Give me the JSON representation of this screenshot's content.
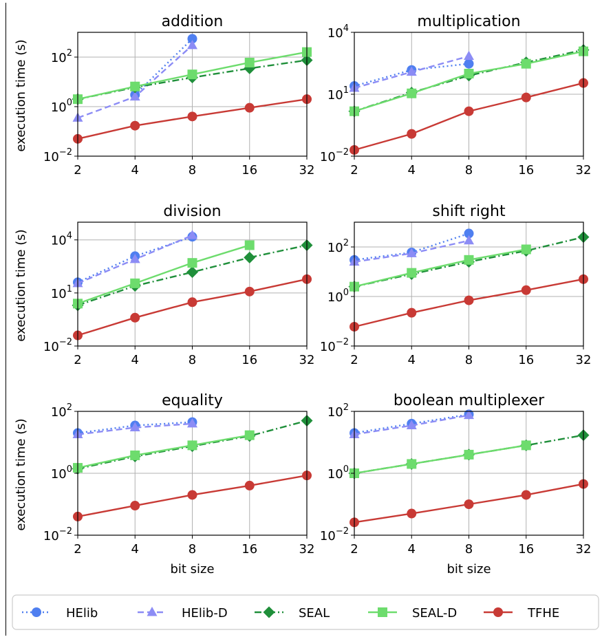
{
  "chart_data": {
    "type": "line",
    "layout": "3x2 grid of small multiples, log-scaled y axes, shared legend at bottom",
    "x": [
      2,
      4,
      8,
      16,
      32
    ],
    "x_tick_labels": [
      "2",
      "4",
      "8",
      "16",
      "32"
    ],
    "xlabel": "bit size",
    "ylabel": "execution time (s)",
    "yscale": "log",
    "grid": true,
    "legend_position": "bottom",
    "series_styles": [
      {
        "name": "HElib",
        "color": "#4f7ff0",
        "line": "dotted",
        "marker": "circle"
      },
      {
        "name": "HElib-D",
        "color": "#8c8cf5",
        "line": "dashed",
        "marker": "triangle"
      },
      {
        "name": "SEAL",
        "color": "#1f8f3a",
        "line": "dashdot",
        "marker": "diamond"
      },
      {
        "name": "SEAL-D",
        "color": "#6ddc6d",
        "line": "solid",
        "marker": "square"
      },
      {
        "name": "TFHE",
        "color": "#c83a35",
        "line": "solid",
        "marker": "circle"
      }
    ],
    "panels": [
      {
        "title": "addition",
        "ylim_exp": [
          -2,
          3
        ],
        "yticks_exp": [
          -2,
          0,
          2
        ],
        "series": [
          {
            "name": "HElib",
            "values": [
              null,
              3,
              550,
              null,
              null
            ]
          },
          {
            "name": "HElib-D",
            "values": [
              0.35,
              2.5,
              300,
              null,
              null
            ]
          },
          {
            "name": "SEAL",
            "values": [
              2,
              6,
              15,
              35,
              75
            ]
          },
          {
            "name": "SEAL-D",
            "values": [
              2,
              6.5,
              20,
              60,
              160
            ]
          },
          {
            "name": "TFHE",
            "values": [
              0.05,
              0.17,
              0.4,
              0.9,
              2
            ]
          }
        ]
      },
      {
        "title": "multiplication",
        "ylim_exp": [
          -2,
          4
        ],
        "yticks_exp": [
          -2,
          1,
          4
        ],
        "series": [
          {
            "name": "HElib",
            "values": [
              25,
              150,
              300,
              null,
              null
            ]
          },
          {
            "name": "HElib-D",
            "values": [
              20,
              120,
              700,
              null,
              null
            ]
          },
          {
            "name": "SEAL",
            "values": [
              1.5,
              12,
              80,
              350,
              1400
            ]
          },
          {
            "name": "SEAL-D",
            "values": [
              1.5,
              11,
              100,
              300,
              1200
            ]
          },
          {
            "name": "TFHE",
            "values": [
              0.02,
              0.12,
              1.5,
              7,
              35
            ]
          }
        ]
      },
      {
        "title": "division",
        "ylim_exp": [
          -2,
          5
        ],
        "yticks_exp": [
          -2,
          1,
          4
        ],
        "series": [
          {
            "name": "HElib",
            "values": [
              40,
              1200,
              15000,
              null,
              null
            ]
          },
          {
            "name": "HElib-D",
            "values": [
              35,
              800,
              18000,
              null,
              null
            ]
          },
          {
            "name": "SEAL",
            "values": [
              2,
              25,
              150,
              1000,
              5000
            ]
          },
          {
            "name": "SEAL-D",
            "values": [
              2.5,
              35,
              500,
              5000,
              null
            ]
          },
          {
            "name": "TFHE",
            "values": [
              0.04,
              0.4,
              3,
              12,
              60
            ]
          }
        ]
      },
      {
        "title": "shift right",
        "ylim_exp": [
          -2,
          3
        ],
        "yticks_exp": [
          -2,
          0,
          2
        ],
        "series": [
          {
            "name": "HElib",
            "values": [
              30,
              60,
              350,
              null,
              null
            ]
          },
          {
            "name": "HElib-D",
            "values": [
              25,
              55,
              180,
              null,
              null
            ]
          },
          {
            "name": "SEAL",
            "values": [
              2.5,
              8,
              25,
              70,
              250
            ]
          },
          {
            "name": "SEAL-D",
            "values": [
              2.5,
              9,
              30,
              80,
              null
            ]
          },
          {
            "name": "TFHE",
            "values": [
              0.06,
              0.22,
              0.7,
              1.8,
              5
            ]
          }
        ]
      },
      {
        "title": "equality",
        "ylim_exp": [
          -2,
          2
        ],
        "yticks_exp": [
          -2,
          0,
          2
        ],
        "series": [
          {
            "name": "HElib",
            "values": [
              20,
              35,
              45,
              null,
              null
            ]
          },
          {
            "name": "HElib-D",
            "values": [
              18,
              30,
              40,
              null,
              null
            ]
          },
          {
            "name": "SEAL",
            "values": [
              1.4,
              3.5,
              7.5,
              16,
              50
            ]
          },
          {
            "name": "SEAL-D",
            "values": [
              1.5,
              3.8,
              8,
              17,
              null
            ]
          },
          {
            "name": "TFHE",
            "values": [
              0.04,
              0.09,
              0.2,
              0.4,
              0.85
            ]
          }
        ]
      },
      {
        "title": "boolean multiplexer",
        "ylim_exp": [
          -2,
          2
        ],
        "yticks_exp": [
          -2,
          0,
          2
        ],
        "series": [
          {
            "name": "HElib",
            "values": [
              20,
              40,
              80,
              null,
              null
            ]
          },
          {
            "name": "HElib-D",
            "values": [
              18,
              35,
              75,
              null,
              null
            ]
          },
          {
            "name": "SEAL",
            "values": [
              1,
              2,
              4,
              8,
              17
            ]
          },
          {
            "name": "SEAL-D",
            "values": [
              1,
              2,
              4,
              8,
              null
            ]
          },
          {
            "name": "TFHE",
            "values": [
              0.026,
              0.05,
              0.1,
              0.2,
              0.45
            ]
          }
        ]
      }
    ]
  }
}
